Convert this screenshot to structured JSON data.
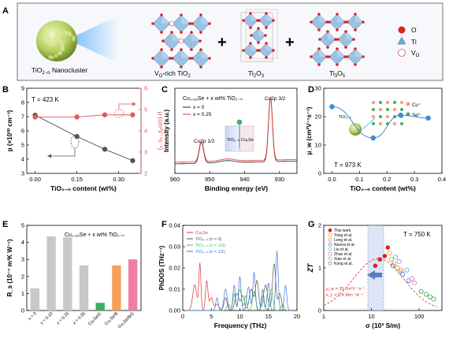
{
  "panels": {
    "A": {
      "letter": "A",
      "nanocluster_label": "TiO",
      "nanocluster_sub": "2−n",
      "nanocluster_suffix": " Nanocluster",
      "phase1_prefix": "V",
      "phase1_sub": "O",
      "phase1_suffix": "-rich TiO",
      "phase1_sub2": "2",
      "phase2": "Ti",
      "phase2_sub1": "2",
      "phase2_mid": "O",
      "phase2_sub2": "3",
      "phase3": "Ti",
      "phase3_sub1": "3",
      "phase3_mid": "O",
      "phase3_sub2": "5",
      "plus": "+",
      "legend": [
        {
          "label": "O",
          "color": "#e02020"
        },
        {
          "label": "Ti",
          "color": "#6fa8d6"
        },
        {
          "label": "V",
          "sub": "O",
          "color": "#ffffff"
        }
      ]
    },
    "B": {
      "letter": "B"
    },
    "C": {
      "letter": "C"
    },
    "D": {
      "letter": "D"
    },
    "E": {
      "letter": "E"
    },
    "F": {
      "letter": "F"
    },
    "G": {
      "letter": "G"
    }
  },
  "chart_data": [
    {
      "id": "B",
      "type": "line",
      "annotation": "T = 423 K",
      "xlabel": "TiO₂₋ₙ content (wt%)",
      "ylabel_left": "p (×10²⁰ cm⁻³)",
      "ylabel_right": "μ (cm²V⁻¹s⁻¹)",
      "xlim": [
        -0.03,
        0.38
      ],
      "xticks": [
        "0.00",
        "0.15",
        "0.30"
      ],
      "ylim_left": [
        3,
        9
      ],
      "yticks_left": [
        "3",
        "4",
        "5",
        "6",
        "7",
        "8",
        "9"
      ],
      "ylim_right": [
        2,
        6
      ],
      "yticks_right": [
        "2",
        "3",
        "4",
        "5",
        "6"
      ],
      "series": [
        {
          "axis": "left",
          "color": "#555555",
          "x": [
            0,
            0.15,
            0.25,
            0.35
          ],
          "values": [
            7.1,
            5.6,
            4.7,
            3.9
          ]
        },
        {
          "axis": "right",
          "color": "#e05a5a",
          "x": [
            0,
            0.15,
            0.25,
            0.35
          ],
          "values": [
            4.65,
            4.65,
            4.75,
            4.75
          ]
        }
      ]
    },
    {
      "id": "C",
      "type": "line",
      "title": "Cu₁.₉₉Se + x wt% TiO₂₋ₙ",
      "xlabel": "Binding energy (eV)",
      "ylabel": "Intensity (a.u.)",
      "xlim": [
        960,
        925
      ],
      "xticks": [
        "960",
        "950",
        "940",
        "930"
      ],
      "peak_labels": [
        "Cu2p 1/2",
        "Cu2p 3/2"
      ],
      "inset_labels": [
        "TiO₂₋ₙ",
        "Cu₂Se"
      ],
      "series": [
        {
          "name": "x = 0",
          "color": "#222222"
        },
        {
          "name": "x = 0.25",
          "color": "#e03030"
        }
      ]
    },
    {
      "id": "D",
      "type": "line",
      "annotation": "T = 973 K",
      "xlabel": "TiO₂₋ₙ content (wt%)",
      "ylabel": "μ_w (cm²V⁻¹s⁻¹)",
      "xlim": [
        -0.03,
        0.4
      ],
      "xticks": [
        "0.0",
        "0.1",
        "0.2",
        "0.3",
        "0.4"
      ],
      "ylim": [
        0,
        30
      ],
      "yticks": [
        "0",
        "10",
        "20",
        "30"
      ],
      "inset_labels": [
        "TiO₂₋ₙ",
        "Cu⁺",
        "Se²⁻"
      ],
      "series": [
        {
          "color": "#3c8dd8",
          "x": [
            0,
            0.15,
            0.25,
            0.35
          ],
          "values": [
            23.5,
            12.5,
            20.5,
            19.5
          ]
        }
      ]
    },
    {
      "id": "E",
      "type": "bar",
      "title": "Cu₁.₉₉Se + x wt% TiO₂₋ₙ",
      "ylabel": "R_s (10⁻⁷ m³K W⁻¹)",
      "ylim": [
        0,
        5
      ],
      "yticks": [
        "0",
        "1",
        "2",
        "3",
        "4",
        "5"
      ],
      "categories": [
        "x = 0",
        "x = 0.10",
        "x = 0.25",
        "x = 0.35",
        "Cu₂Se/C",
        "Cu₂Se/B",
        "Cu₂Se/B/C"
      ],
      "values": [
        1.3,
        4.35,
        4.3,
        2.65,
        0.45,
        2.65,
        3.0
      ],
      "colors": [
        "#c8c8c8",
        "#c8c8c8",
        "#c8c8c8",
        "#c8c8c8",
        "#3bb05c",
        "#f5a05a",
        "#ef7fa0"
      ]
    },
    {
      "id": "F",
      "type": "line",
      "xlabel": "Frequency (THz)",
      "ylabel": "PhDOS (THz⁻¹)",
      "xlim": [
        0,
        20
      ],
      "xticks": [
        "0",
        "5",
        "10",
        "15",
        "20"
      ],
      "ylim": [
        0,
        0.04
      ],
      "yticks": [
        "0.00",
        "0.01",
        "0.02",
        "0.03",
        "0.04"
      ],
      "series": [
        {
          "name": "Cu₂Se",
          "color": "#e63232"
        },
        {
          "name": "TiO₂₋ₙ (n = 0)",
          "color": "#555555"
        },
        {
          "name": "TiO₂₋ₙ (n = 1/3)",
          "color": "#46c05a"
        },
        {
          "name": "TiO₂₋ₙ (n = 1/2)",
          "color": "#3c78d8"
        }
      ]
    },
    {
      "id": "G",
      "type": "scatter",
      "annotation": "T = 750 K",
      "xlabel": "σ (10³ S/m)",
      "ylabel": "ZT",
      "xscale": "log",
      "xlim": [
        1,
        300
      ],
      "xticks": [
        "1",
        "10",
        "100"
      ],
      "ylim": [
        0,
        2
      ],
      "yticks": [
        "0",
        "1",
        "2"
      ],
      "fit_labels": [
        "μ_w = 35 cm²V⁻¹s⁻¹",
        "κ_L = 0.4 Wm⁻¹K⁻¹"
      ],
      "series": [
        {
          "name": "This work",
          "color": "#e02020",
          "x": [
            12,
            15,
            19,
            22
          ],
          "values": [
            1.05,
            1.2,
            1.28,
            1.48
          ]
        },
        {
          "name": "Yang et al.",
          "color": "#f0a020",
          "x": [
            24,
            30,
            40
          ],
          "values": [
            1.35,
            1.1,
            0.9
          ]
        },
        {
          "name": "Long et al.",
          "color": "#a0a040",
          "x": [
            26,
            35
          ],
          "values": [
            1.2,
            1.0
          ]
        },
        {
          "name": "Nunna et al.",
          "color": "#3c78d8",
          "x": [
            28,
            45,
            60
          ],
          "values": [
            1.05,
            0.85,
            0.7
          ]
        },
        {
          "name": "Liu et al.",
          "color": "#50b0d0",
          "x": [
            32,
            55
          ],
          "values": [
            1.25,
            0.95
          ]
        },
        {
          "name": "Zhao et al.",
          "color": "#d070d0",
          "x": [
            38,
            70
          ],
          "values": [
            1.15,
            0.75
          ]
        },
        {
          "name": "Xiao et al.",
          "color": "#f08080",
          "x": [
            42,
            80
          ],
          "values": [
            0.95,
            0.65
          ]
        },
        {
          "name": "Kong et al.",
          "color": "#40a040",
          "x": [
            110,
            140,
            170,
            200
          ],
          "values": [
            0.45,
            0.38,
            0.32,
            0.27
          ]
        }
      ]
    }
  ]
}
